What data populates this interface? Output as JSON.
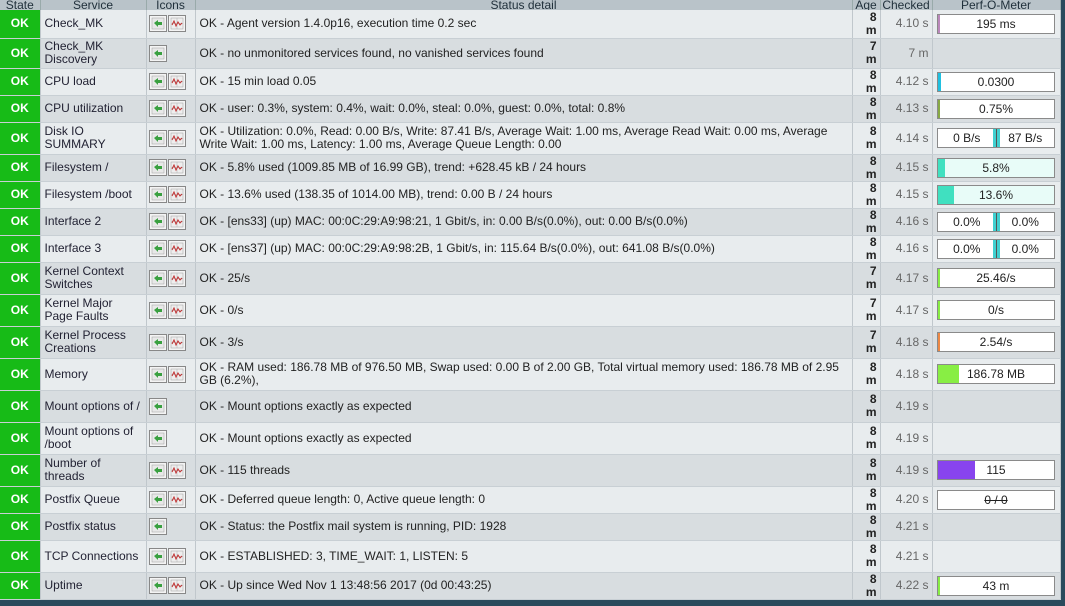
{
  "columns": {
    "state": "State",
    "service": "Service",
    "icons": "Icons",
    "status": "Status detail",
    "age": "Age",
    "checked": "Checked",
    "perf": "Perf-O-Meter"
  },
  "colors": {
    "ok": "#17bb17",
    "header_bg": "#b9c3c9",
    "page_bg": "#2a4a5c"
  },
  "icon_names": {
    "action": "action-menu-icon",
    "graph": "pnp-graph-icon"
  },
  "rows": [
    {
      "state": "OK",
      "service": "Check_MK",
      "graph": true,
      "status": "OK - Agent version 1.4.0p16, execution time 0.2 sec",
      "age": "8 m",
      "checked": "4.10 s",
      "perf": {
        "kind": "bar",
        "text": "195 ms",
        "level": 0.02,
        "color": "#bb88bb"
      }
    },
    {
      "state": "OK",
      "service": "Check_MK Discovery",
      "graph": false,
      "status": "OK - no unmonitored services found, no vanished services found",
      "age": "7 m",
      "checked": "7 m",
      "perf": null
    },
    {
      "state": "OK",
      "service": "CPU load",
      "graph": true,
      "status": "OK - 15 min load 0.05",
      "age": "8 m",
      "checked": "4.12 s",
      "perf": {
        "kind": "bar",
        "text": "0.0300",
        "level": 0.03,
        "color": "#20c0e0"
      }
    },
    {
      "state": "OK",
      "service": "CPU utilization",
      "graph": true,
      "status": "OK - user: 0.3%, system: 0.4%, wait: 0.0%, steal: 0.0%, guest: 0.0%, total: 0.8%",
      "age": "8 m",
      "checked": "4.13 s",
      "perf": {
        "kind": "bar",
        "text": "0.75%",
        "level": 0.02,
        "color": "#88aa44"
      }
    },
    {
      "state": "OK",
      "service": "Disk IO SUMMARY",
      "graph": true,
      "status": "OK - Utilization: 0.0%, Read: 0.00 B/s, Write: 87.41 B/s, Average Wait: 1.00 ms, Average Read Wait: 0.00 ms, Average Write Wait: 1.00 ms, Latency: 1.00 ms, Average Queue Length: 0.00",
      "age": "8 m",
      "checked": "4.14 s",
      "perf": {
        "kind": "split",
        "left": "0 B/s",
        "right": "87 B/s",
        "strike": false
      }
    },
    {
      "state": "OK",
      "service": "Filesystem /",
      "graph": true,
      "status": "OK - 5.8% used (1009.85 MB of 16.99 GB), trend: +628.45 kB / 24 hours",
      "age": "8 m",
      "checked": "4.15 s",
      "perf": {
        "kind": "bar",
        "text": "5.8%",
        "level": 0.058,
        "color": "#40e0c0",
        "bg": "#e8fcf8"
      }
    },
    {
      "state": "OK",
      "service": "Filesystem /boot",
      "graph": true,
      "status": "OK - 13.6% used (138.35 of 1014.00 MB), trend: 0.00 B / 24 hours",
      "age": "8 m",
      "checked": "4.15 s",
      "perf": {
        "kind": "bar",
        "text": "13.6%",
        "level": 0.136,
        "color": "#40e0c0",
        "bg": "#e8fcf8"
      }
    },
    {
      "state": "OK",
      "service": "Interface 2",
      "graph": true,
      "status": "OK - [ens33] (up) MAC: 00:0C:29:A9:98:21, 1 Gbit/s, in: 0.00 B/s(0.0%), out: 0.00 B/s(0.0%)",
      "age": "8 m",
      "checked": "4.16 s",
      "perf": {
        "kind": "split",
        "left": "0.0%",
        "right": "0.0%",
        "strike": false
      }
    },
    {
      "state": "OK",
      "service": "Interface 3",
      "graph": true,
      "status": "OK - [ens37] (up) MAC: 00:0C:29:A9:98:2B, 1 Gbit/s, in: 115.64 B/s(0.0%), out: 641.08 B/s(0.0%)",
      "age": "8 m",
      "checked": "4.16 s",
      "perf": {
        "kind": "split",
        "left": "0.0%",
        "right": "0.0%",
        "strike": false
      }
    },
    {
      "state": "OK",
      "service": "Kernel Context Switches",
      "graph": true,
      "status": "OK - 25/s",
      "age": "7 m",
      "checked": "4.17 s",
      "perf": {
        "kind": "bar",
        "text": "25.46/s",
        "level": 0.02,
        "color": "#88ee44"
      }
    },
    {
      "state": "OK",
      "service": "Kernel Major Page Faults",
      "graph": true,
      "status": "OK - 0/s",
      "age": "7 m",
      "checked": "4.17 s",
      "perf": {
        "kind": "bar",
        "text": "0/s",
        "level": 0.0,
        "color": "#88ee44"
      }
    },
    {
      "state": "OK",
      "service": "Kernel Process Creations",
      "graph": true,
      "status": "OK - 3/s",
      "age": "7 m",
      "checked": "4.18 s",
      "perf": {
        "kind": "bar",
        "text": "2.54/s",
        "level": 0.02,
        "color": "#ee8844"
      }
    },
    {
      "state": "OK",
      "service": "Memory",
      "graph": true,
      "status": "OK - RAM used: 186.78 MB of 976.50 MB, Swap used: 0.00 B of 2.00 GB, Total virtual memory used: 186.78 MB of 2.95 GB (6.2%),",
      "age": "8 m",
      "checked": "4.18 s",
      "perf": {
        "kind": "bar",
        "text": "186.78 MB",
        "level": 0.18,
        "color": "#88ee44"
      }
    },
    {
      "state": "OK",
      "service": "Mount options of /",
      "graph": false,
      "status": "OK - Mount options exactly as expected",
      "age": "8 m",
      "checked": "4.19 s",
      "perf": null
    },
    {
      "state": "OK",
      "service": "Mount options of /boot",
      "graph": false,
      "status": "OK - Mount options exactly as expected",
      "age": "8 m",
      "checked": "4.19 s",
      "perf": null
    },
    {
      "state": "OK",
      "service": "Number of threads",
      "graph": true,
      "status": "OK - 115 threads",
      "age": "8 m",
      "checked": "4.19 s",
      "perf": {
        "kind": "bar",
        "text": "115",
        "level": 0.32,
        "color": "#8844ee"
      }
    },
    {
      "state": "OK",
      "service": "Postfix Queue",
      "graph": true,
      "status": "OK - Deferred queue length: 0, Active queue length: 0",
      "age": "8 m",
      "checked": "4.20 s",
      "perf": {
        "kind": "bar",
        "text": "0 / 0",
        "level": 0.0,
        "color": "#ffffff",
        "strike": true
      }
    },
    {
      "state": "OK",
      "service": "Postfix status",
      "graph": false,
      "status": "OK - Status: the Postfix mail system is running, PID: 1928",
      "age": "8 m",
      "checked": "4.21 s",
      "perf": null
    },
    {
      "state": "OK",
      "service": "TCP Connections",
      "graph": true,
      "status": "OK - ESTABLISHED: 3, TIME_WAIT: 1, LISTEN: 5",
      "age": "8 m",
      "checked": "4.21 s",
      "perf": null
    },
    {
      "state": "OK",
      "service": "Uptime",
      "graph": true,
      "status": "OK - Up since Wed Nov 1 13:48:56 2017 (0d 00:43:25)",
      "age": "8 m",
      "checked": "4.22 s",
      "perf": {
        "kind": "bar",
        "text": "43 m",
        "level": 0.02,
        "color": "#88ee44"
      }
    }
  ]
}
